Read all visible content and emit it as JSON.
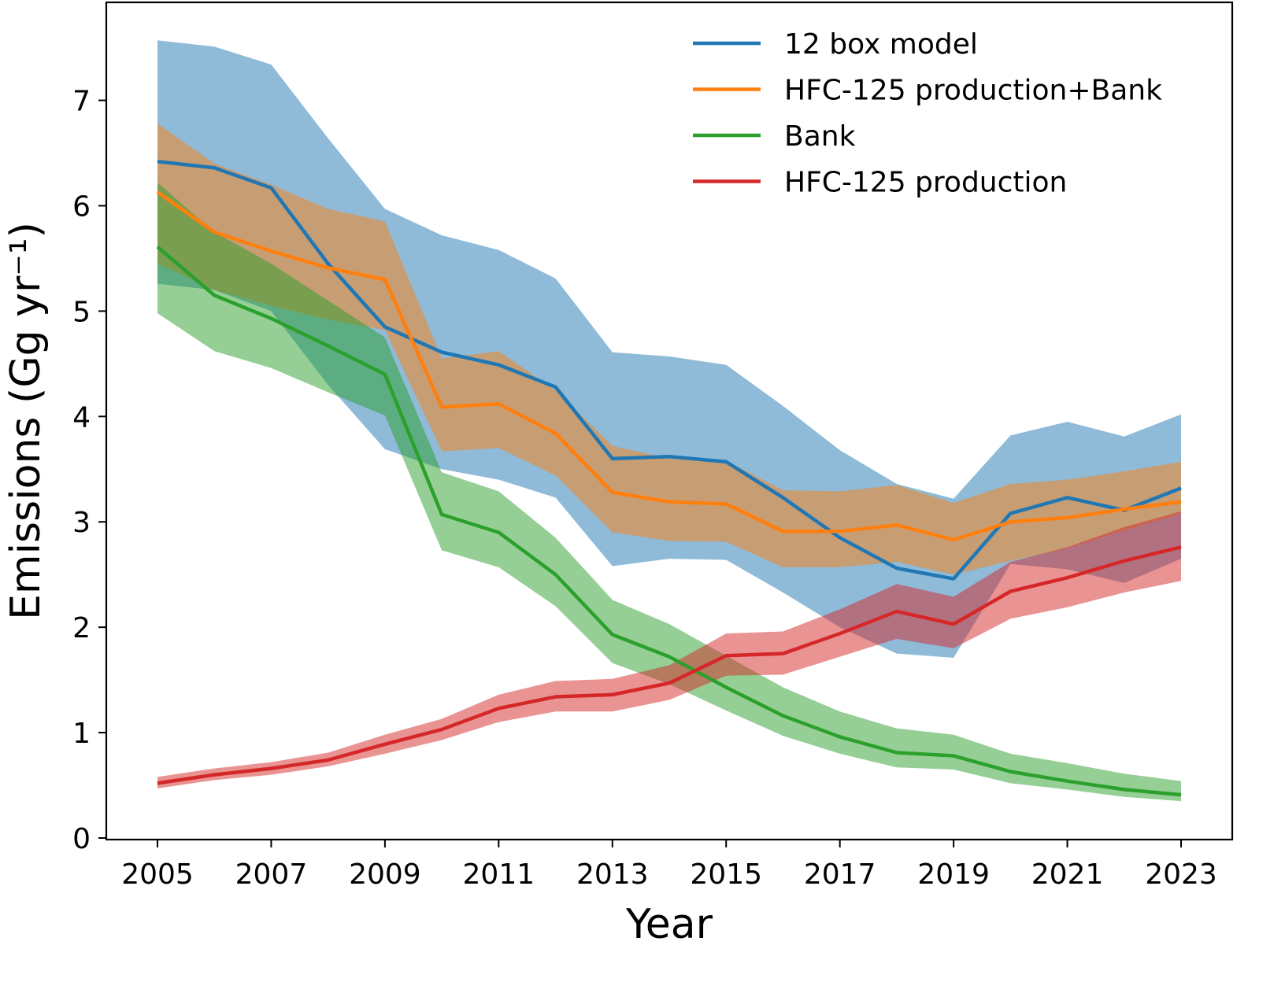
{
  "chart_data": {
    "type": "line",
    "title": "",
    "xlabel": "Year",
    "ylabel": "Emissions (Gg yr⁻¹)",
    "xlim": [
      2004.1,
      2023.9
    ],
    "ylim": [
      -0.015,
      7.93
    ],
    "grid": false,
    "legend_placement": "top-right",
    "xticks": [
      2005,
      2007,
      2009,
      2011,
      2013,
      2015,
      2017,
      2019,
      2021,
      2023
    ],
    "yticks": [
      0,
      1,
      2,
      3,
      4,
      5,
      6,
      7
    ],
    "x": [
      2005,
      2006,
      2007,
      2008,
      2009,
      2010,
      2011,
      2012,
      2013,
      2014,
      2015,
      2016,
      2017,
      2018,
      2019,
      2020,
      2021,
      2022,
      2023
    ],
    "series": [
      {
        "name": "12 box model",
        "color": "#1f77b4",
        "values": [
          6.42,
          6.36,
          6.17,
          5.45,
          4.85,
          4.61,
          4.49,
          4.28,
          3.6,
          3.62,
          3.57,
          3.23,
          2.85,
          2.56,
          2.46,
          3.08,
          3.23,
          3.11,
          3.32
        ],
        "upper": [
          7.57,
          7.51,
          7.34,
          6.64,
          5.97,
          5.72,
          5.58,
          5.31,
          4.61,
          4.57,
          4.49,
          4.1,
          3.68,
          3.36,
          3.22,
          3.82,
          3.95,
          3.81,
          4.02
        ],
        "lower": [
          5.26,
          5.2,
          5.0,
          4.3,
          3.69,
          3.5,
          3.4,
          3.23,
          2.58,
          2.65,
          2.64,
          2.33,
          2.0,
          1.75,
          1.71,
          2.6,
          2.55,
          2.42,
          2.65
        ]
      },
      {
        "name": "HFC-125 production+Bank",
        "color": "#ff7f0e",
        "values": [
          6.13,
          5.75,
          5.57,
          5.41,
          5.3,
          4.09,
          4.12,
          3.84,
          3.28,
          3.19,
          3.17,
          2.91,
          2.91,
          2.97,
          2.83,
          3.0,
          3.04,
          3.12,
          3.19
        ],
        "upper": [
          6.78,
          6.4,
          6.2,
          5.97,
          5.85,
          4.55,
          4.62,
          4.25,
          3.72,
          3.6,
          3.58,
          3.3,
          3.29,
          3.35,
          3.18,
          3.36,
          3.4,
          3.48,
          3.57
        ],
        "lower": [
          5.45,
          5.2,
          5.05,
          4.92,
          4.82,
          3.67,
          3.7,
          3.44,
          2.9,
          2.82,
          2.81,
          2.57,
          2.57,
          2.62,
          2.5,
          2.63,
          2.75,
          2.92,
          3.08
        ]
      },
      {
        "name": "Bank",
        "color": "#2ca02c",
        "values": [
          5.61,
          5.15,
          4.93,
          4.67,
          4.4,
          3.07,
          2.9,
          2.5,
          1.93,
          1.72,
          1.43,
          1.16,
          0.96,
          0.81,
          0.78,
          0.63,
          0.54,
          0.46,
          0.41
        ],
        "upper": [
          6.22,
          5.75,
          5.45,
          5.1,
          4.75,
          3.47,
          3.29,
          2.85,
          2.26,
          2.03,
          1.73,
          1.43,
          1.2,
          1.04,
          0.98,
          0.8,
          0.71,
          0.61,
          0.54
        ],
        "lower": [
          4.98,
          4.62,
          4.46,
          4.23,
          4.01,
          2.73,
          2.57,
          2.2,
          1.66,
          1.46,
          1.21,
          0.97,
          0.8,
          0.67,
          0.65,
          0.52,
          0.46,
          0.39,
          0.35
        ]
      },
      {
        "name": "HFC-125 production",
        "color": "#d62728",
        "values": [
          0.52,
          0.6,
          0.66,
          0.74,
          0.89,
          1.03,
          1.23,
          1.34,
          1.36,
          1.47,
          1.73,
          1.75,
          1.94,
          2.15,
          2.03,
          2.34,
          2.47,
          2.63,
          2.76
        ],
        "upper": [
          0.58,
          0.66,
          0.72,
          0.81,
          0.98,
          1.13,
          1.36,
          1.49,
          1.51,
          1.64,
          1.94,
          1.96,
          2.17,
          2.41,
          2.29,
          2.62,
          2.76,
          2.95,
          3.1
        ],
        "lower": [
          0.47,
          0.55,
          0.6,
          0.68,
          0.8,
          0.93,
          1.1,
          1.2,
          1.2,
          1.31,
          1.54,
          1.55,
          1.72,
          1.89,
          1.8,
          2.08,
          2.19,
          2.33,
          2.44
        ]
      }
    ]
  }
}
